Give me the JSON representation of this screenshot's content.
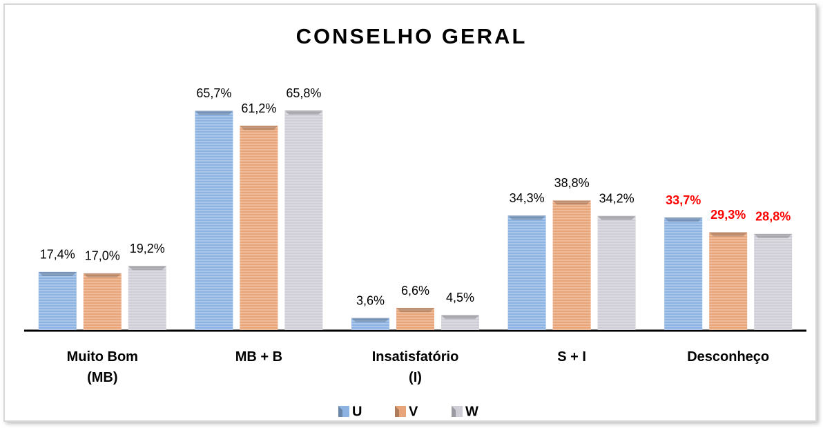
{
  "chart_data": {
    "type": "bar",
    "title": "CONSELHO GERAL",
    "categories": [
      "Muito Bom (MB)",
      "MB + B",
      "Insatisfatório (I)",
      "S + I",
      "Desconheço"
    ],
    "series": [
      {
        "name": "U",
        "color": "#8db3e2",
        "values": [
          17.4,
          65.7,
          3.6,
          34.3,
          33.7
        ],
        "value_labels": [
          "17,4%",
          "65,7%",
          "3,6%",
          "34,3%",
          "33,7%"
        ],
        "label_colors": [
          "#000000",
          "#000000",
          "#000000",
          "#000000",
          "#ff0000"
        ]
      },
      {
        "name": "V",
        "color": "#e8a57a",
        "values": [
          17.0,
          61.2,
          6.6,
          38.8,
          29.3
        ],
        "value_labels": [
          "17,0%",
          "61,2%",
          "6,6%",
          "38,8%",
          "29,3%"
        ],
        "label_colors": [
          "#000000",
          "#000000",
          "#000000",
          "#000000",
          "#ff0000"
        ]
      },
      {
        "name": "W",
        "color": "#cfced6",
        "values": [
          19.2,
          65.8,
          4.5,
          34.2,
          28.8
        ],
        "value_labels": [
          "19,2%",
          "65,8%",
          "4,5%",
          "34,2%",
          "28,8%"
        ],
        "label_colors": [
          "#000000",
          "#000000",
          "#000000",
          "#000000",
          "#ff0000"
        ]
      }
    ],
    "legend": "bottom"
  }
}
